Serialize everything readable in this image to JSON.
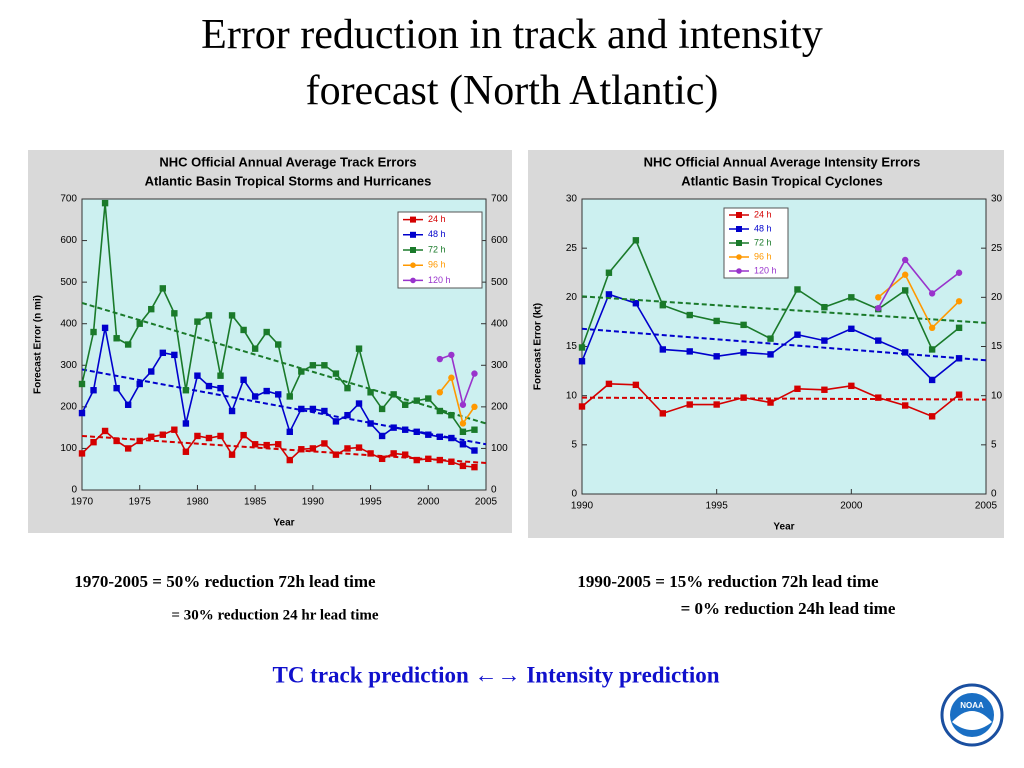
{
  "title": "Error reduction in track and intensity forecast (North Atlantic)",
  "captions": [
    "1970-2005 = 50% reduction 72h lead time",
    "= 30% reduction 24 hr lead time",
    "1990-2005 = 15% reduction 72h lead time",
    "=  0%  reduction 24h lead time"
  ],
  "footer": "TC track prediction ←→  Intensity prediction",
  "logo": "NOAA",
  "chart_data": [
    {
      "type": "line",
      "title": "NHC Official Annual Average Track Errors",
      "subtitle": "Atlantic Basin Tropical Storms and Hurricanes",
      "x_label": "Year",
      "y_label": "Forecast Error (n mi)",
      "x": [
        1970,
        1971,
        1972,
        1973,
        1974,
        1975,
        1976,
        1977,
        1978,
        1979,
        1980,
        1981,
        1982,
        1983,
        1984,
        1985,
        1986,
        1987,
        1988,
        1989,
        1990,
        1991,
        1992,
        1993,
        1994,
        1995,
        1996,
        1997,
        1998,
        1999,
        2000,
        2001,
        2002,
        2003,
        2004
      ],
      "xlim": [
        1970,
        2005
      ],
      "xticks": [
        1970,
        1975,
        1980,
        1985,
        1990,
        1995,
        2000,
        2005
      ],
      "ylim": [
        0,
        700
      ],
      "yticks": [
        0,
        100,
        200,
        300,
        400,
        500,
        600,
        700
      ],
      "y2lim": [
        0,
        700
      ],
      "y2ticks": [
        0,
        100,
        200,
        300,
        400,
        500,
        600,
        700
      ],
      "series": [
        {
          "name": "24 h",
          "color": "#d40000",
          "marker": "square",
          "values": [
            88,
            115,
            142,
            118,
            100,
            118,
            128,
            133,
            145,
            92,
            130,
            125,
            130,
            85,
            132,
            110,
            108,
            110,
            72,
            98,
            100,
            112,
            85,
            100,
            102,
            88,
            75,
            88,
            85,
            72,
            75,
            72,
            68,
            58,
            55
          ],
          "trend": [
            130,
            65
          ]
        },
        {
          "name": "48 h",
          "color": "#0000cc",
          "marker": "square",
          "values": [
            185,
            240,
            390,
            245,
            205,
            255,
            285,
            330,
            325,
            160,
            275,
            250,
            245,
            190,
            265,
            225,
            238,
            230,
            140,
            195,
            195,
            190,
            165,
            180,
            208,
            160,
            130,
            150,
            145,
            140,
            133,
            128,
            125,
            110,
            95
          ],
          "trend": [
            290,
            110
          ]
        },
        {
          "name": "72 h",
          "color": "#1a7a2a",
          "marker": "square",
          "values": [
            255,
            380,
            690,
            365,
            350,
            400,
            435,
            485,
            425,
            240,
            405,
            420,
            275,
            420,
            385,
            340,
            380,
            350,
            225,
            285,
            300,
            300,
            280,
            245,
            340,
            235,
            195,
            230,
            205,
            215,
            220,
            190,
            180,
            140,
            145
          ],
          "trend": [
            450,
            160
          ]
        },
        {
          "name": "96 h",
          "color": "#ff9900",
          "marker": "circle",
          "values": [
            null,
            null,
            null,
            null,
            null,
            null,
            null,
            null,
            null,
            null,
            null,
            null,
            null,
            null,
            null,
            null,
            null,
            null,
            null,
            null,
            null,
            null,
            null,
            null,
            null,
            null,
            null,
            null,
            null,
            null,
            null,
            235,
            270,
            160,
            200
          ]
        },
        {
          "name": "120 h",
          "color": "#9933cc",
          "marker": "circle",
          "values": [
            null,
            null,
            null,
            null,
            null,
            null,
            null,
            null,
            null,
            null,
            null,
            null,
            null,
            null,
            null,
            null,
            null,
            null,
            null,
            null,
            null,
            null,
            null,
            null,
            null,
            null,
            null,
            null,
            null,
            null,
            null,
            315,
            325,
            205,
            280
          ]
        }
      ]
    },
    {
      "type": "line",
      "title": "NHC Official Annual Average Intensity Errors",
      "subtitle": "Atlantic Basin Tropical Cyclones",
      "x_label": "Year",
      "y_label": "Forecast Error (kt)",
      "x": [
        1990,
        1991,
        1992,
        1993,
        1994,
        1995,
        1996,
        1997,
        1998,
        1999,
        2000,
        2001,
        2002,
        2003,
        2004
      ],
      "xlim": [
        1990,
        2005
      ],
      "xticks": [
        1990,
        1995,
        2000,
        2005
      ],
      "ylim": [
        0,
        30
      ],
      "yticks": [
        0,
        5,
        10,
        15,
        20,
        25,
        30
      ],
      "y2lim": [
        0,
        30
      ],
      "y2ticks": [
        0,
        5,
        10,
        15,
        20,
        25,
        30
      ],
      "series": [
        {
          "name": "24 h",
          "color": "#d40000",
          "marker": "square",
          "values": [
            8.9,
            11.2,
            11.1,
            8.2,
            9.1,
            9.1,
            9.8,
            9.3,
            10.7,
            10.6,
            11.0,
            9.8,
            9.0,
            7.9,
            10.1
          ],
          "trend": [
            9.8,
            9.6
          ]
        },
        {
          "name": "48 h",
          "color": "#0000cc",
          "marker": "square",
          "values": [
            13.5,
            20.3,
            19.4,
            14.7,
            14.5,
            14.0,
            14.4,
            14.2,
            16.2,
            15.6,
            16.8,
            15.6,
            14.4,
            11.6,
            13.8
          ],
          "trend": [
            16.8,
            13.6
          ]
        },
        {
          "name": "72 h",
          "color": "#1a7a2a",
          "marker": "square",
          "values": [
            14.9,
            22.5,
            25.8,
            19.2,
            18.2,
            17.6,
            17.2,
            15.8,
            20.8,
            19.0,
            20.0,
            18.8,
            20.7,
            14.7,
            16.9
          ],
          "trend": [
            20.1,
            17.4
          ]
        },
        {
          "name": "96 h",
          "color": "#ff9900",
          "marker": "circle",
          "values": [
            null,
            null,
            null,
            null,
            null,
            null,
            null,
            null,
            null,
            null,
            null,
            20.0,
            22.3,
            16.9,
            19.6
          ]
        },
        {
          "name": "120 h",
          "color": "#9933cc",
          "marker": "circle",
          "values": [
            null,
            null,
            null,
            null,
            null,
            null,
            null,
            null,
            null,
            null,
            null,
            18.9,
            23.8,
            20.4,
            22.5
          ]
        }
      ]
    }
  ]
}
